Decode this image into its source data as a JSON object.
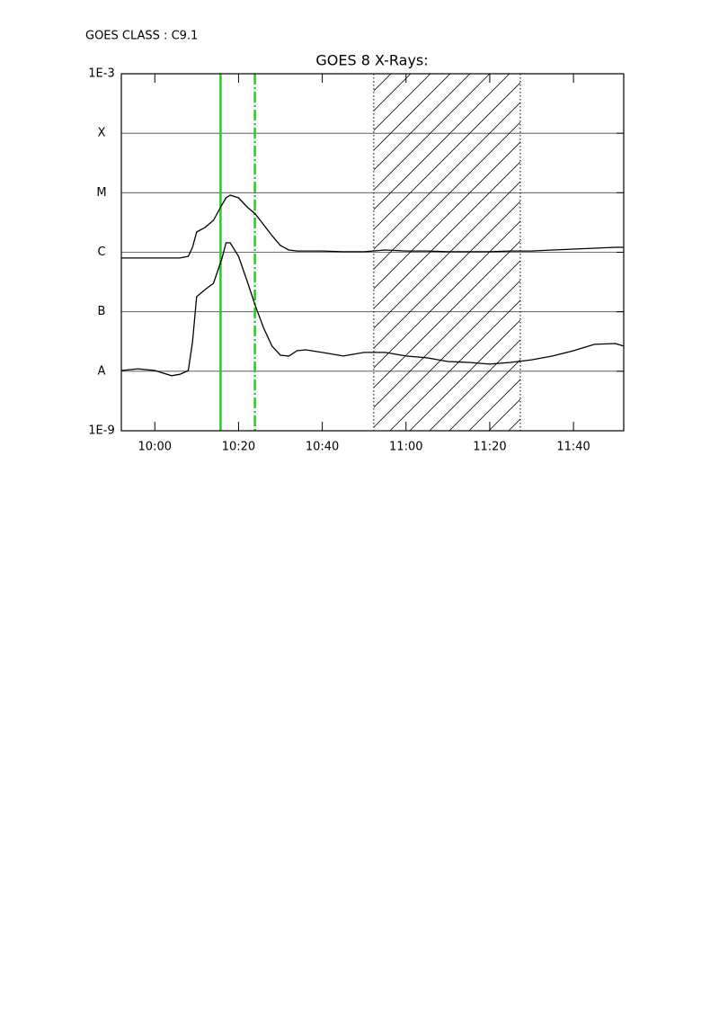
{
  "chart_data": {
    "type": "line",
    "header": "GOES CLASS : C9.1",
    "title": "GOES 8 X-Rays:",
    "x": [
      592,
      596,
      600,
      604,
      606,
      608,
      609,
      610,
      612,
      614,
      616,
      617,
      618,
      620,
      622,
      624,
      626,
      628,
      630,
      632,
      634,
      636,
      640,
      645,
      650,
      655,
      660,
      665,
      670,
      675,
      680,
      685,
      690,
      695,
      700,
      705,
      710,
      712
    ],
    "series": [
      {
        "color": "#000000",
        "values": [
          8e-07,
          8e-07,
          8e-07,
          8e-07,
          8e-07,
          8.55e-07,
          1.21e-06,
          2.19e-06,
          2.61e-06,
          3.44e-06,
          6.22e-06,
          8.2e-06,
          9.1e-06,
          8.2e-06,
          5.8e-06,
          4.39e-06,
          2.89e-06,
          1.9e-06,
          1.3e-06,
          1.09e-06,
          1.05e-06,
          1.05e-06,
          1.05e-06,
          1.02e-06,
          1.02e-06,
          1.09e-06,
          1.05e-06,
          1.05e-06,
          1.02e-06,
          1.02e-06,
          1.02e-06,
          1.05e-06,
          1.05e-06,
          1.09e-06,
          1.13e-06,
          1.17e-06,
          1.21e-06,
          1.21e-06
        ]
      },
      {
        "color": "#000000",
        "values": [
          1.03e-08,
          1.1e-08,
          1.03e-08,
          8.4e-09,
          8.9e-09,
          1.03e-08,
          3.1e-08,
          1.79e-07,
          2.36e-07,
          3e-07,
          7.7e-07,
          1.44e-06,
          1.44e-06,
          8.55e-07,
          3.34e-07,
          1.26e-07,
          5.3e-08,
          2.64e-08,
          1.86e-08,
          1.8e-08,
          2.21e-08,
          2.29e-08,
          2.07e-08,
          1.8e-08,
          2.07e-08,
          2.07e-08,
          1.8e-08,
          1.68e-08,
          1.46e-08,
          1.41e-08,
          1.32e-08,
          1.41e-08,
          1.56e-08,
          1.8e-08,
          2.21e-08,
          2.83e-08,
          2.92e-08,
          2.64e-08
        ]
      }
    ],
    "xlim": [
      592,
      712
    ],
    "xticks": [
      {
        "value": 600,
        "label": "10:00"
      },
      {
        "value": 620,
        "label": "10:20"
      },
      {
        "value": 640,
        "label": "10:40"
      },
      {
        "value": 660,
        "label": "11:00"
      },
      {
        "value": 680,
        "label": "11:20"
      },
      {
        "value": 700,
        "label": "11:40"
      }
    ],
    "ylim": [
      1e-09,
      0.001
    ],
    "yscale": "log",
    "yticks": [
      {
        "value": 1e-09,
        "label": "1E-9"
      },
      {
        "value": 1e-08,
        "label": "A"
      },
      {
        "value": 1e-07,
        "label": "B"
      },
      {
        "value": 1e-06,
        "label": "C"
      },
      {
        "value": 1e-05,
        "label": "M"
      },
      {
        "value": 0.0001,
        "label": "X"
      },
      {
        "value": 0.001,
        "label": "1E-3"
      }
    ],
    "grid": true,
    "vlines": [
      {
        "x": 615.7,
        "color": "#22cc22",
        "style": "solid"
      },
      {
        "x": 623.9,
        "color": "#22cc22",
        "style": "dashed"
      }
    ],
    "hatched_span": [
      652.3,
      687.3
    ]
  }
}
